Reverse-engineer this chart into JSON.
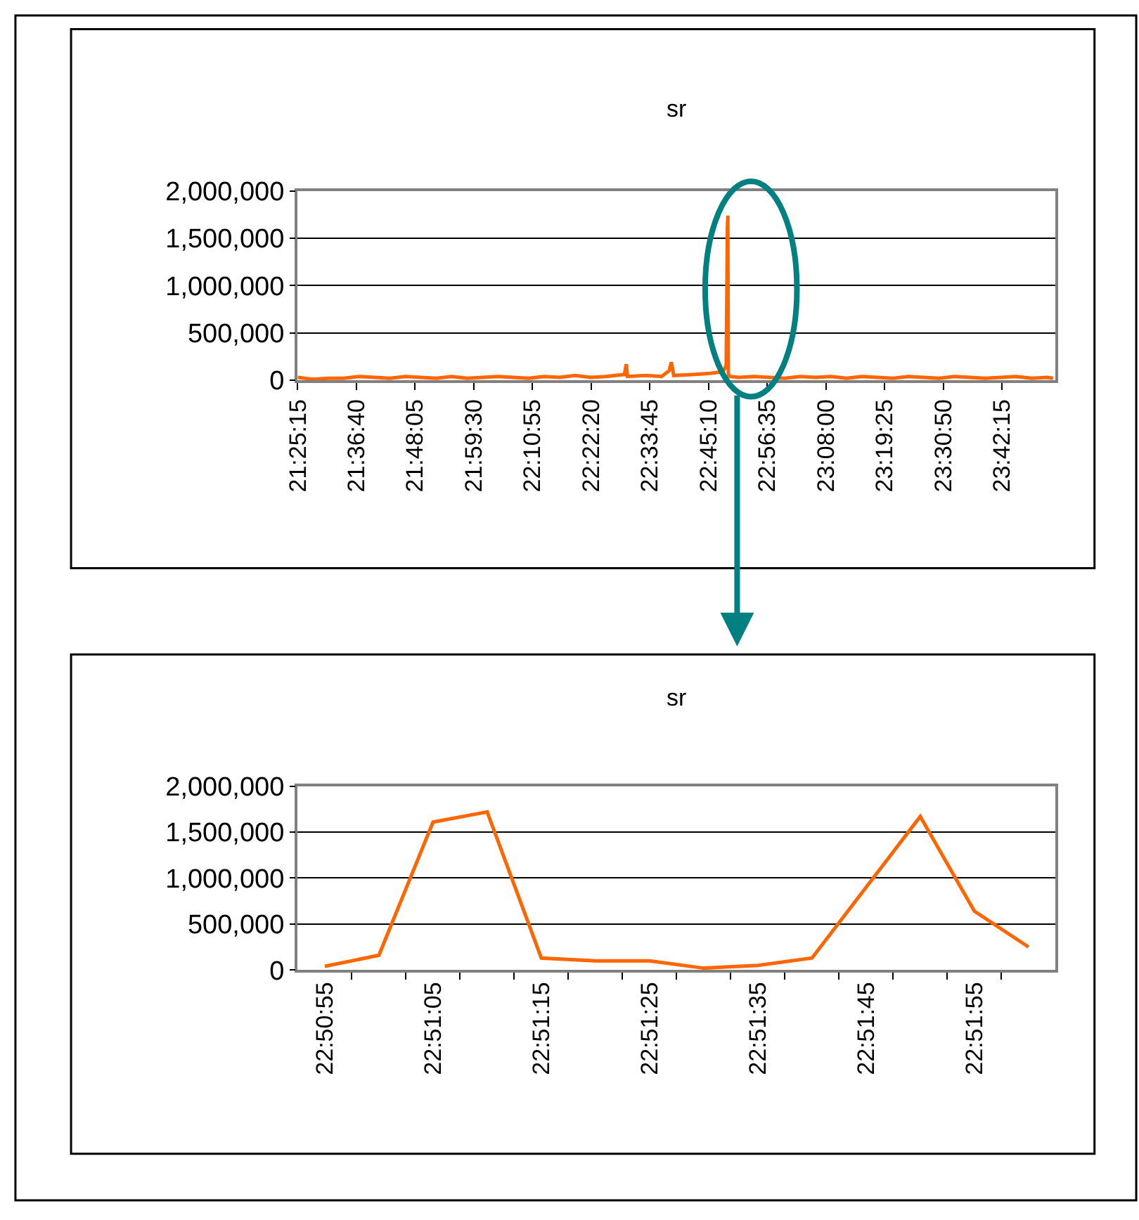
{
  "chart_data": [
    {
      "type": "line",
      "title": "sr",
      "x": [
        21.421,
        21.47,
        21.52,
        21.57,
        21.62,
        21.67,
        21.72,
        21.77,
        21.82,
        21.87,
        21.92,
        21.97,
        22.02,
        22.07,
        22.12,
        22.17,
        22.22,
        22.27,
        22.32,
        22.37,
        22.42,
        22.45,
        22.48,
        22.486,
        22.49,
        22.55,
        22.6,
        22.625,
        22.632,
        22.64,
        22.7,
        22.75,
        22.8,
        22.81,
        22.8139,
        22.8153,
        22.8167,
        22.8181,
        22.825,
        22.85,
        22.9,
        22.95,
        23.0,
        23.05,
        23.1,
        23.15,
        23.2,
        23.25,
        23.3,
        23.35,
        23.4,
        23.45,
        23.5,
        23.55,
        23.6,
        23.65,
        23.7,
        23.75,
        23.8,
        23.85,
        23.87
      ],
      "series": [
        {
          "color": "#ff6600",
          "values": [
            30000,
            10000,
            20000,
            20000,
            40000,
            30000,
            20000,
            40000,
            30000,
            20000,
            40000,
            20000,
            30000,
            40000,
            30000,
            20000,
            40000,
            30000,
            50000,
            30000,
            40000,
            50000,
            60000,
            170000,
            40000,
            50000,
            40000,
            100000,
            190000,
            50000,
            60000,
            70000,
            90000,
            160000,
            1610000,
            1740000,
            100000,
            40000,
            40000,
            30000,
            40000,
            30000,
            20000,
            40000,
            30000,
            40000,
            20000,
            40000,
            30000,
            20000,
            40000,
            30000,
            20000,
            40000,
            30000,
            20000,
            30000,
            40000,
            20000,
            30000,
            20000
          ]
        }
      ],
      "xlim": [
        21.4208,
        23.8778
      ],
      "xticks": [
        {
          "value": 21.420833,
          "label": "21:25:15"
        },
        {
          "value": 21.611111,
          "label": "21:36:40"
        },
        {
          "value": 21.801389,
          "label": "21:48:05"
        },
        {
          "value": 21.991667,
          "label": "21:59:30"
        },
        {
          "value": 22.181944,
          "label": "22:10:55"
        },
        {
          "value": 22.372222,
          "label": "22:22:20"
        },
        {
          "value": 22.5625,
          "label": "22:33:45"
        },
        {
          "value": 22.752778,
          "label": "22:45:10"
        },
        {
          "value": 22.943056,
          "label": "22:56:35"
        },
        {
          "value": 23.133333,
          "label": "23:08:00"
        },
        {
          "value": 23.323611,
          "label": "23:19:25"
        },
        {
          "value": 23.513889,
          "label": "23:30:50"
        },
        {
          "value": 23.704167,
          "label": "23:42:15"
        }
      ],
      "ylim": [
        0,
        2000000
      ],
      "yticks": [
        {
          "value": 0,
          "label": "0"
        },
        {
          "value": 500000,
          "label": "500,000"
        },
        {
          "value": 1000000,
          "label": "1,000,000"
        },
        {
          "value": 1500000,
          "label": "1,500,000"
        },
        {
          "value": 2000000,
          "label": "2,000,000"
        }
      ],
      "grid": "y",
      "marker": "none",
      "line_style": "solid"
    },
    {
      "type": "line",
      "title": "sr",
      "categories": [
        "22:50:55",
        null,
        "22:51:05",
        null,
        "22:51:15",
        null,
        "22:51:25",
        null,
        "22:51:35",
        null,
        "22:51:45",
        null,
        "22:51:55",
        null
      ],
      "series": [
        {
          "color": "#ff6600",
          "values": [
            40000,
            160000,
            1610000,
            1720000,
            130000,
            100000,
            100000,
            20000,
            50000,
            130000,
            900000,
            1670000,
            640000,
            250000
          ]
        }
      ],
      "ylim": [
        0,
        2000000
      ],
      "yticks": [
        {
          "value": 0,
          "label": "0"
        },
        {
          "value": 500000,
          "label": "500,000"
        },
        {
          "value": 1000000,
          "label": "1,000,000"
        },
        {
          "value": 1500000,
          "label": "1,500,000"
        },
        {
          "value": 2000000,
          "label": "2,000,000"
        }
      ],
      "grid": "y",
      "marker": "none",
      "line_style": "solid"
    }
  ]
}
